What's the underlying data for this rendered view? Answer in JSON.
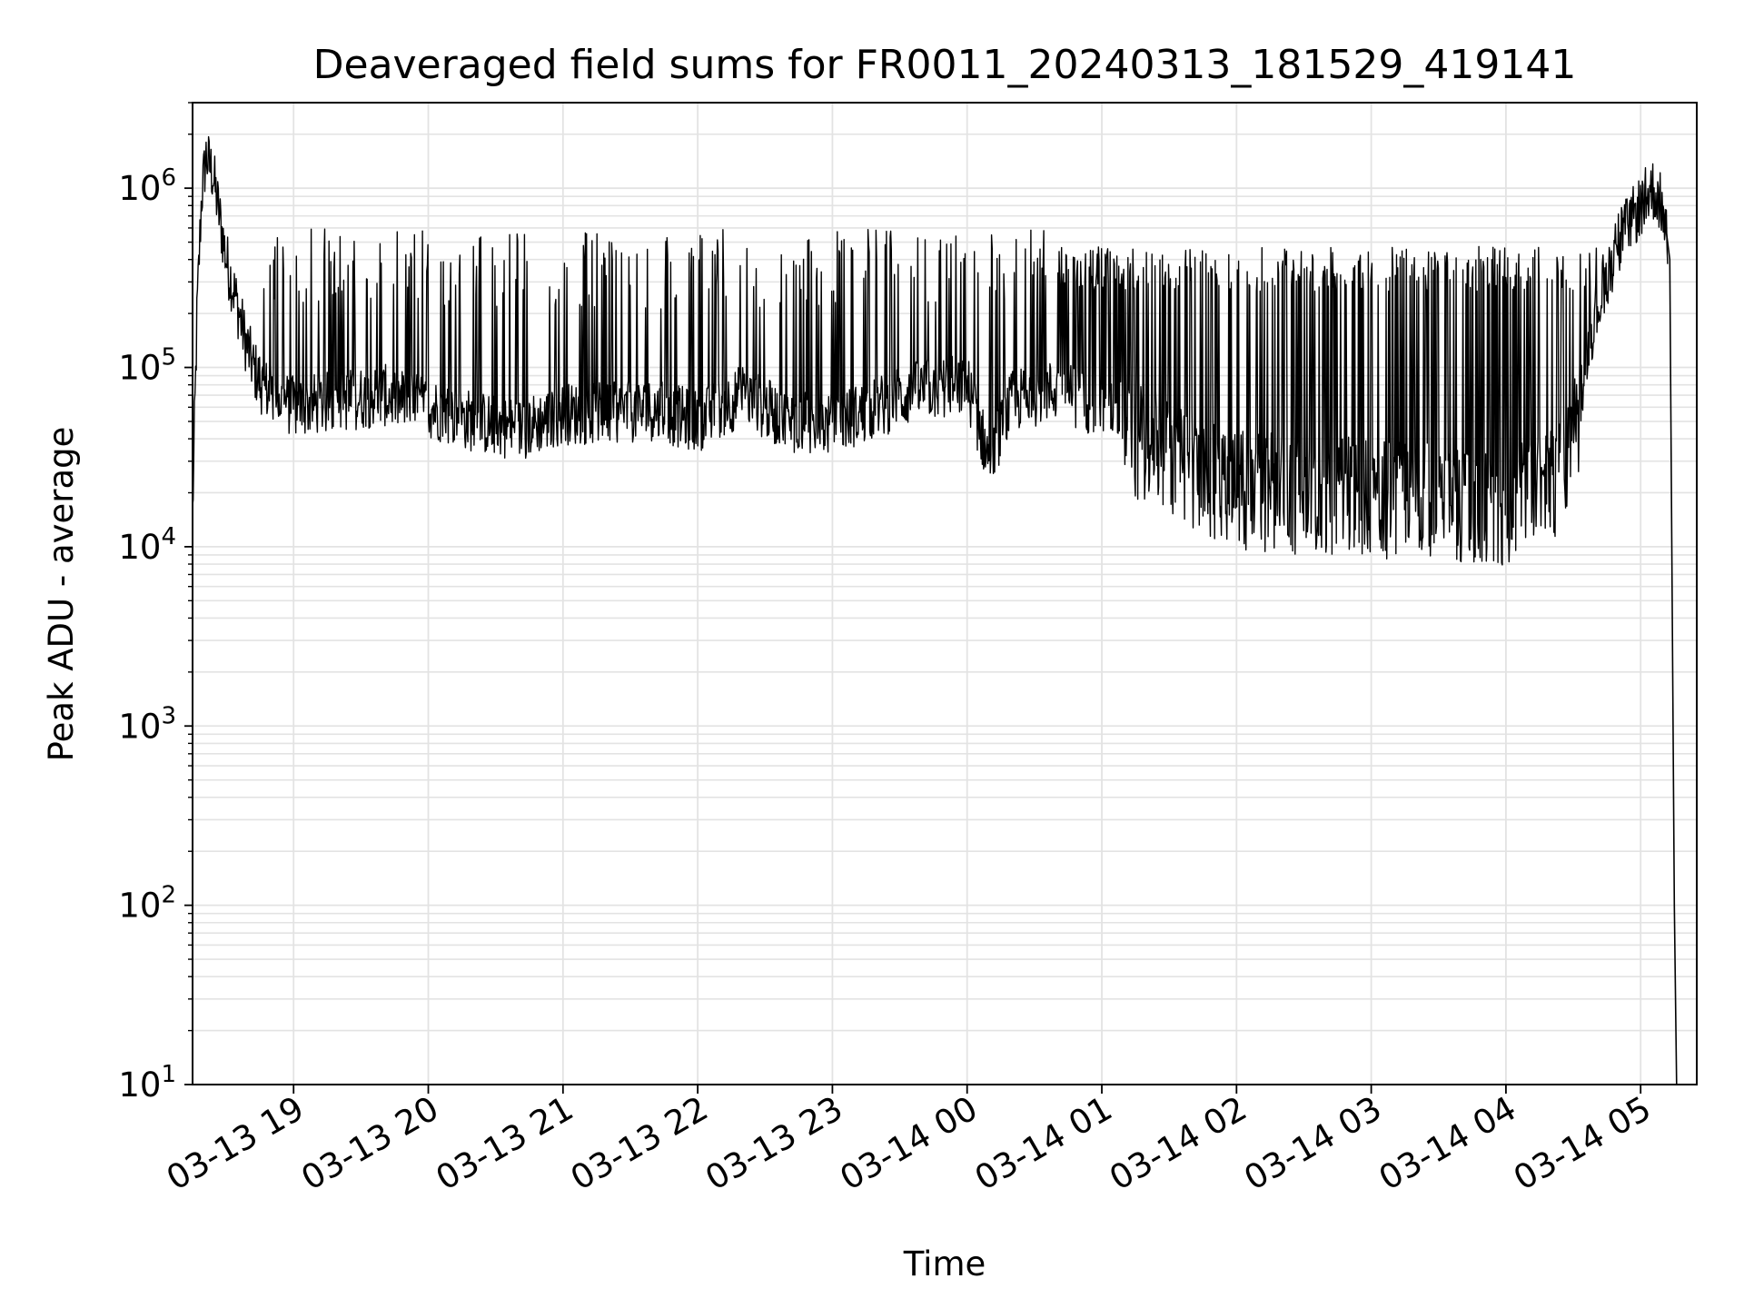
{
  "chart_data": {
    "type": "line",
    "title": "Deaveraged field sums for FR0011_20240313_181529_419141",
    "xlabel": "Time",
    "ylabel": "Peak ADU - average",
    "yscale": "log",
    "ylim": [
      10,
      3000000
    ],
    "xlim": [
      "2024-03-13 18:15",
      "2024-03-14 05:25"
    ],
    "grid": true,
    "legend": "none",
    "line_color": "#000000",
    "grid_color": "#e3e3e3",
    "x_tick_labels": [
      "03-13 19",
      "03-13 20",
      "03-13 21",
      "03-13 22",
      "03-13 23",
      "03-14 00",
      "03-14 01",
      "03-14 02",
      "03-14 03",
      "03-14 04",
      "03-14 05"
    ],
    "y_tick_labels": [
      {
        "base": "10",
        "exp": "1"
      },
      {
        "base": "10",
        "exp": "2"
      },
      {
        "base": "10",
        "exp": "3"
      },
      {
        "base": "10",
        "exp": "4"
      },
      {
        "base": "10",
        "exp": "5"
      },
      {
        "base": "10",
        "exp": "6"
      }
    ],
    "series": [
      {
        "x": [
          "2024-03-13 18:15",
          "2024-03-13 18:17",
          "2024-03-13 18:19",
          "2024-03-13 18:21",
          "2024-03-13 18:24",
          "2024-03-13 18:27",
          "2024-03-13 18:30",
          "2024-03-13 18:34",
          "2024-03-13 18:38",
          "2024-03-13 18:42",
          "2024-03-13 18:46",
          "2024-03-13 18:50",
          "2024-03-13 18:55",
          "2024-03-13 19:00",
          "2024-03-13 19:20",
          "2024-03-13 19:40",
          "2024-03-13 20:00",
          "2024-03-13 20:20",
          "2024-03-13 20:40",
          "2024-03-13 21:00",
          "2024-03-13 21:20",
          "2024-03-13 21:40",
          "2024-03-13 22:00",
          "2024-03-13 22:20",
          "2024-03-13 22:40",
          "2024-03-13 23:00",
          "2024-03-13 23:20",
          "2024-03-13 23:40",
          "2024-03-14 00:00",
          "2024-03-14 00:10",
          "2024-03-14 00:20",
          "2024-03-14 00:40",
          "2024-03-14 01:00",
          "2024-03-14 01:20",
          "2024-03-14 01:40",
          "2024-03-14 02:00",
          "2024-03-14 02:30",
          "2024-03-14 03:00",
          "2024-03-14 03:30",
          "2024-03-14 04:00",
          "2024-03-14 04:20",
          "2024-03-14 04:30",
          "2024-03-14 04:40",
          "2024-03-14 04:50",
          "2024-03-14 05:00",
          "2024-03-14 05:05",
          "2024-03-14 05:10",
          "2024-03-14 05:13",
          "2024-03-14 05:15",
          "2024-03-14 05:16"
        ],
        "y": [
          15000,
          200000,
          900000,
          1500000,
          1200000,
          700000,
          400000,
          250000,
          150000,
          100000,
          80000,
          70000,
          65000,
          60000,
          65000,
          70000,
          60000,
          50000,
          45000,
          55000,
          55000,
          58000,
          50000,
          70000,
          50000,
          48000,
          60000,
          75000,
          80000,
          30000,
          65000,
          75000,
          60000,
          55000,
          40000,
          30000,
          28000,
          27000,
          25000,
          25000,
          30000,
          60000,
          200000,
          500000,
          800000,
          1000000,
          800000,
          400000,
          100,
          10
        ]
      }
    ]
  }
}
